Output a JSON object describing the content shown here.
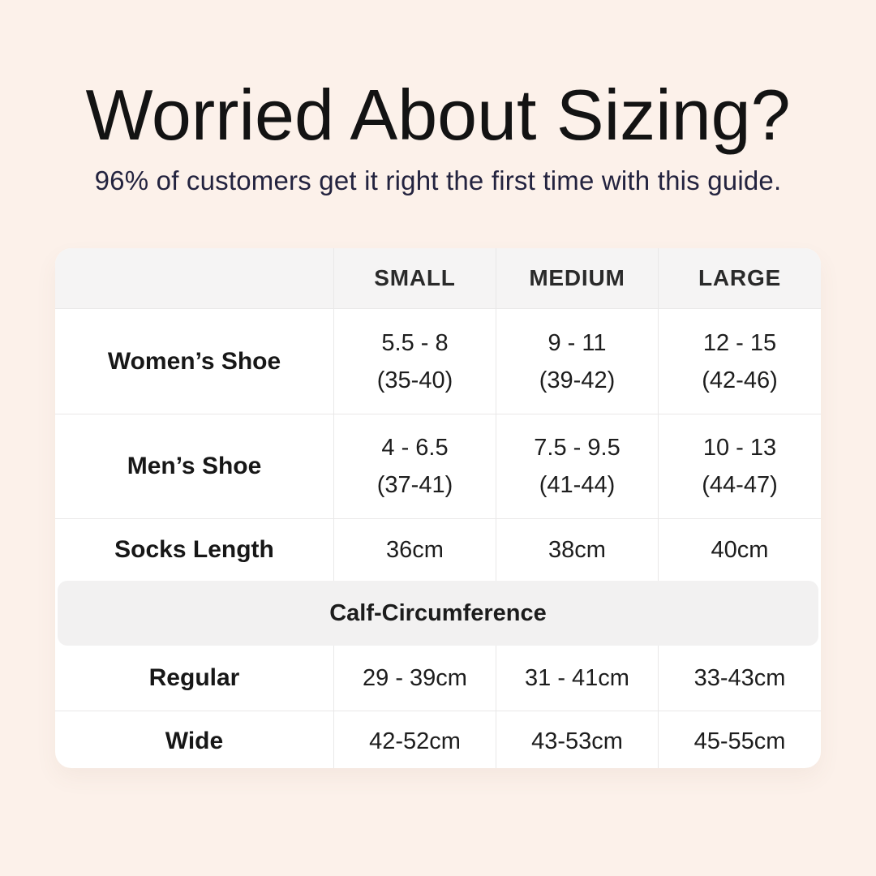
{
  "header": {
    "title": "Worried About Sizing?",
    "subtitle": "96% of customers get it right the first time with this guide."
  },
  "size_table": {
    "columns": [
      "SMALL",
      "MEDIUM",
      "LARGE"
    ],
    "rows": [
      {
        "label": "Women’s Shoe",
        "cells": [
          "5.5 - 8\n(35-40)",
          "9 - 11\n(39-42)",
          "12 - 15\n(42-46)"
        ]
      },
      {
        "label": "Men’s Shoe",
        "cells": [
          "4 - 6.5\n(37-41)",
          "7.5 - 9.5\n(41-44)",
          "10 - 13\n(44-47)"
        ]
      },
      {
        "label": "Socks Length",
        "cells": [
          "36cm",
          "38cm",
          "40cm"
        ]
      }
    ],
    "section_header": "Calf-Circumference",
    "calf_rows": [
      {
        "label": "Regular",
        "cells": [
          "29 - 39cm",
          "31 - 41cm",
          "33-43cm"
        ]
      },
      {
        "label": "Wide",
        "cells": [
          "42-52cm",
          "43-53cm",
          "45-55cm"
        ]
      }
    ]
  },
  "colors": {
    "background": "#fcf1ea",
    "card": "#ffffff",
    "band_gray": "#f5f4f4",
    "gridline": "#e9e8e8",
    "subtitle_navy": "#23233f",
    "text_dark": "#131313"
  },
  "chart_data": {
    "type": "table",
    "title": "Worried About Sizing?",
    "subtitle": "96% of customers get it right the first time with this guide.",
    "columns": [
      "",
      "SMALL",
      "MEDIUM",
      "LARGE"
    ],
    "rows": [
      [
        "Women’s Shoe",
        "5.5 - 8 (35-40)",
        "9 - 11 (39-42)",
        "12 - 15 (42-46)"
      ],
      [
        "Men’s Shoe",
        "4 - 6.5 (37-41)",
        "7.5 - 9.5 (41-44)",
        "10 - 13 (44-47)"
      ],
      [
        "Socks Length",
        "36cm",
        "38cm",
        "40cm"
      ],
      [
        "Calf-Circumference",
        "",
        "",
        ""
      ],
      [
        "Regular",
        "29 - 39cm",
        "31 - 41cm",
        "33-43cm"
      ],
      [
        "Wide",
        "42-52cm",
        "43-53cm",
        "45-55cm"
      ]
    ],
    "layout": {
      "header_background": "#f5f4f4",
      "section_band_background": "#f2f1f1",
      "grid": "light horizontal and vertical separators",
      "corner_radius_px": 20
    }
  }
}
